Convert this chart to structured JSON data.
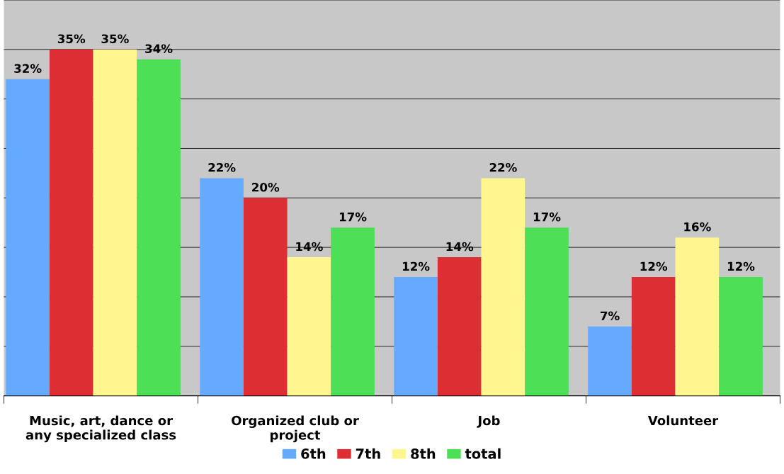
{
  "chart_data": {
    "type": "bar",
    "categories": [
      "Music, art, dance or\nany specialized class",
      "Organized club or\nproject",
      "Job",
      "Volunteer"
    ],
    "series": [
      {
        "name": "6th",
        "color": "#66aaff",
        "values": [
          32,
          22,
          12,
          7
        ],
        "value_labels": [
          "32%",
          "22%",
          "12%",
          "7%"
        ]
      },
      {
        "name": "7th",
        "color": "#dd2e33",
        "values": [
          35,
          20,
          14,
          12
        ],
        "value_labels": [
          "35%",
          "20%",
          "14%",
          "12%"
        ]
      },
      {
        "name": "8th",
        "color": "#fff68f",
        "values": [
          35,
          14,
          22,
          16
        ],
        "value_labels": [
          "35%",
          "14%",
          "22%",
          "16%"
        ]
      },
      {
        "name": "total",
        "color": "#4ddf55",
        "values": [
          34,
          17,
          17,
          12
        ],
        "value_labels": [
          "34%",
          "17%",
          "17%",
          "12%"
        ]
      }
    ],
    "ylim": [
      0,
      40
    ],
    "yticks": [
      {
        "value": 0,
        "label": null
      },
      {
        "value": 5,
        "label": null
      },
      {
        "value": 10,
        "label": null
      },
      {
        "value": 15,
        "label": null
      },
      {
        "value": 20,
        "label": null
      },
      {
        "value": 25,
        "label": null
      },
      {
        "value": 30,
        "label": null
      },
      {
        "value": 35,
        "label": null
      },
      {
        "value": 40,
        "label": null
      }
    ],
    "grid": "y",
    "legend": "bottom",
    "tick_labels": "x"
  }
}
